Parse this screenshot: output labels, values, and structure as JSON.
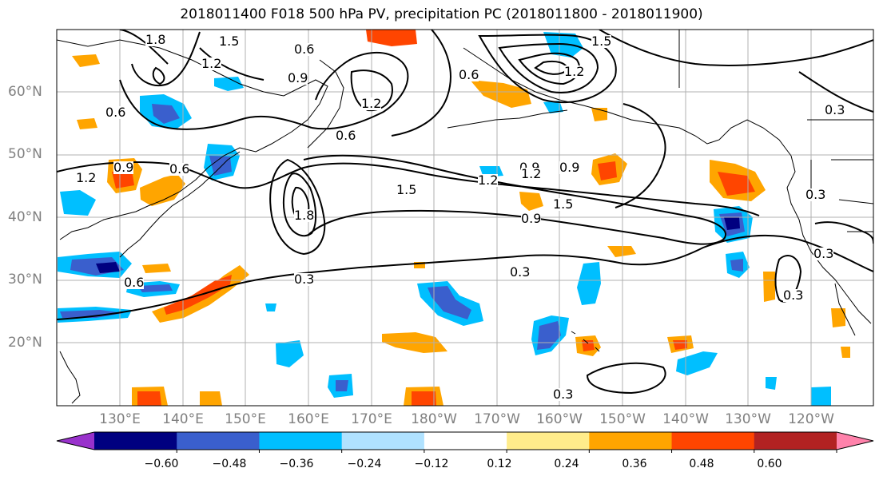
{
  "title": "2018011400 F018 500 hPa PV, precipitation PC (2018011800 - 2018011900)",
  "lat_labels": [
    "60°N",
    "50°N",
    "40°N",
    "30°N",
    "20°N"
  ],
  "lon_labels": [
    "130°E",
    "140°E",
    "150°E",
    "160°E",
    "170°E",
    "180°W",
    "170°W",
    "160°W",
    "150°W",
    "140°W",
    "130°W",
    "120°W"
  ],
  "colorbar": {
    "ticks": [
      "−0.60",
      "−0.48",
      "−0.36",
      "−0.24",
      "−0.12",
      "0.12",
      "0.24",
      "0.36",
      "0.48",
      "0.60"
    ],
    "levels": [
      -0.6,
      -0.48,
      -0.36,
      -0.24,
      -0.12,
      0.12,
      0.24,
      0.36,
      0.48,
      0.6
    ],
    "colors": [
      "#9932cc",
      "#000080",
      "#3a5fcd",
      "#00bfff",
      "#b0e2ff",
      "#ffffff",
      "#ffec8b",
      "#ffa500",
      "#ff4500",
      "#b22222",
      "#ff82ab"
    ]
  },
  "contour_labels": [
    "1.8",
    "1.5",
    "0.6",
    "1.2",
    "0.9",
    "0.6",
    "1.2",
    "1.2",
    "0.6",
    "0.9",
    "1.5",
    "0.9",
    "1.2",
    "0.3",
    "0.6",
    "0.6",
    "1.5",
    "0.9",
    "1.8",
    "1.2",
    "1.5",
    "0.9",
    "0.3",
    "0.3",
    "0.3",
    "0.3",
    "0.3",
    "0.3",
    "0.6",
    "1.2"
  ]
}
